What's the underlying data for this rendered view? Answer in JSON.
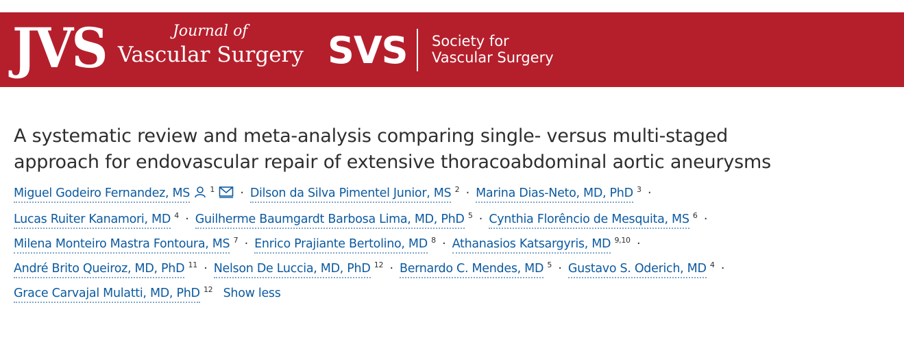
{
  "header": {
    "journal_logo_text": "JVS",
    "journal_name_line1": "Journal of",
    "journal_name_line2": "Vascular Surgery",
    "society_logo_text": "SVS",
    "society_name_line1": "Society for",
    "society_name_line2": "Vascular Surgery",
    "brand_color": "#b51f2c"
  },
  "article": {
    "title_line1": "A systematic review and meta-analysis comparing single- versus multi-staged",
    "title_line2": "approach for endovascular repair of extensive thoracoabdominal aortic aneurysms"
  },
  "authors": [
    {
      "name": "Miguel Godeiro Fernandez, MS",
      "aff": "1"
    },
    {
      "name": "Dilson da Silva Pimentel Junior, MS",
      "aff": "2"
    },
    {
      "name": "Marina Dias-Neto, MD, PhD",
      "aff": "3"
    },
    {
      "name": "Lucas Ruiter Kanamori, MD",
      "aff": "4"
    },
    {
      "name": "Guilherme Baumgardt Barbosa Lima, MD, PhD",
      "aff": "5"
    },
    {
      "name": "Cynthia Florêncio de Mesquita, MS",
      "aff": "6"
    },
    {
      "name": "Milena Monteiro Mastra Fontoura, MS",
      "aff": "7"
    },
    {
      "name": "Enrico Prajiante Bertolino, MD",
      "aff": "8"
    },
    {
      "name": "Athanasios Katsargyris, MD",
      "aff": "9,10"
    },
    {
      "name": "André Brito Queiroz, MD, PhD",
      "aff": "11"
    },
    {
      "name": "Nelson De Luccia, MD, PhD",
      "aff": "12"
    },
    {
      "name": "Bernardo C. Mendes, MD",
      "aff": "5"
    },
    {
      "name": "Gustavo S. Oderich, MD",
      "aff": "4"
    },
    {
      "name": "Grace Carvajal Mulatti, MD, PhD",
      "aff": "12"
    }
  ],
  "separator": "·",
  "show_less_label": "Show less",
  "icons": {
    "corresponding_author": "person-icon",
    "email": "envelope-icon"
  },
  "link_color": "#0c5aa0"
}
